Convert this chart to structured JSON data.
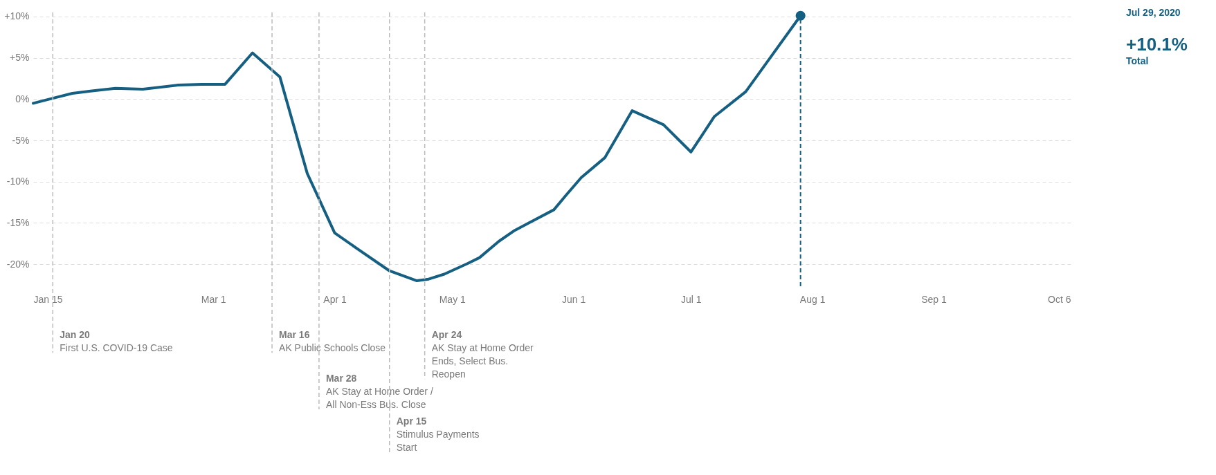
{
  "chart_data": {
    "type": "line",
    "x": [
      "2020-01-15",
      "2020-01-20",
      "2020-01-25",
      "2020-01-30",
      "2020-02-05",
      "2020-02-12",
      "2020-02-21",
      "2020-02-27",
      "2020-03-04",
      "2020-03-11",
      "2020-03-18",
      "2020-03-25",
      "2020-04-01",
      "2020-04-07",
      "2020-04-15",
      "2020-04-22",
      "2020-04-25",
      "2020-04-29",
      "2020-05-05",
      "2020-05-08",
      "2020-05-13",
      "2020-05-17",
      "2020-05-21",
      "2020-05-27",
      "2020-05-30",
      "2020-06-03",
      "2020-06-09",
      "2020-06-16",
      "2020-06-24",
      "2020-07-01",
      "2020-07-07",
      "2020-07-15",
      "2020-07-22",
      "2020-07-29"
    ],
    "series": [
      {
        "color": "#155f82",
        "values": [
          -0.5,
          0.1,
          0.7,
          1.0,
          1.3,
          1.2,
          1.7,
          1.8,
          1.8,
          5.6,
          2.7,
          -9.0,
          -16.2,
          -18.2,
          -20.8,
          -22.0,
          -21.8,
          -21.2,
          -19.9,
          -19.2,
          -17.2,
          -15.9,
          -14.9,
          -13.4,
          -11.7,
          -9.5,
          -7.1,
          -1.4,
          -3.1,
          -6.4,
          -2.1,
          0.9,
          5.5,
          10.1
        ]
      },
      {
        "type": "scatter",
        "color": "#155f82",
        "marker": "circle",
        "x": [
          "2020-07-29"
        ],
        "values": [
          10.1
        ]
      }
    ],
    "xlim": [
      "2020-01-15",
      "2020-10-06"
    ],
    "xticks": [
      {
        "value": "2020-01-15",
        "label": "Jan 15"
      },
      {
        "value": "2020-03-01",
        "label": "Mar 1"
      },
      {
        "value": "2020-04-01",
        "label": "Apr 1"
      },
      {
        "value": "2020-05-01",
        "label": "May 1"
      },
      {
        "value": "2020-06-01",
        "label": "Jun 1"
      },
      {
        "value": "2020-07-01",
        "label": "Jul 1"
      },
      {
        "value": "2020-08-01",
        "label": "Aug 1"
      },
      {
        "value": "2020-09-01",
        "label": "Sep 1"
      },
      {
        "value": "2020-10-06",
        "label": "Oct 6"
      }
    ],
    "ylim": [
      -23,
      10.5
    ],
    "yticks": [
      {
        "value": -20,
        "label": "-20%"
      },
      {
        "value": -15,
        "label": "-15%"
      },
      {
        "value": -10,
        "label": "-10%"
      },
      {
        "value": -5,
        "label": "-5%"
      },
      {
        "value": 0,
        "label": "0%"
      },
      {
        "value": 5,
        "label": "+5%"
      },
      {
        "value": 10,
        "label": "+10%"
      }
    ],
    "grid": "y",
    "ref_lines": [
      {
        "axis": "x",
        "value": "2020-01-20",
        "label": "Jan 20\nFirst U.S. COVID-19 Case",
        "color": "#bbbbbb",
        "line_style": "dashed"
      },
      {
        "axis": "x",
        "value": "2020-03-16",
        "label": "Mar 16\nAK Public Schools Close",
        "color": "#bbbbbb",
        "line_style": "dashed"
      },
      {
        "axis": "x",
        "value": "2020-03-28",
        "label": "Mar 28\nAK Stay at Home Order /\nAll Non-Ess Bus. Close",
        "color": "#bbbbbb",
        "line_style": "dashed"
      },
      {
        "axis": "x",
        "value": "2020-04-15",
        "label": "Apr 15\nStimulus Payments\nStart",
        "color": "#bbbbbb",
        "line_style": "dashed"
      },
      {
        "axis": "x",
        "value": "2020-04-24",
        "label": "Apr 24\nAK Stay at Home Order\nEnds, Select Bus.\nReopen",
        "color": "#bbbbbb",
        "line_style": "dashed"
      },
      {
        "axis": "x",
        "value": "2020-07-29",
        "color": "#155f82",
        "line_style": "dashed"
      }
    ],
    "annotations": [
      "Jul 29, 2020",
      "+10.1%",
      "Total"
    ]
  }
}
